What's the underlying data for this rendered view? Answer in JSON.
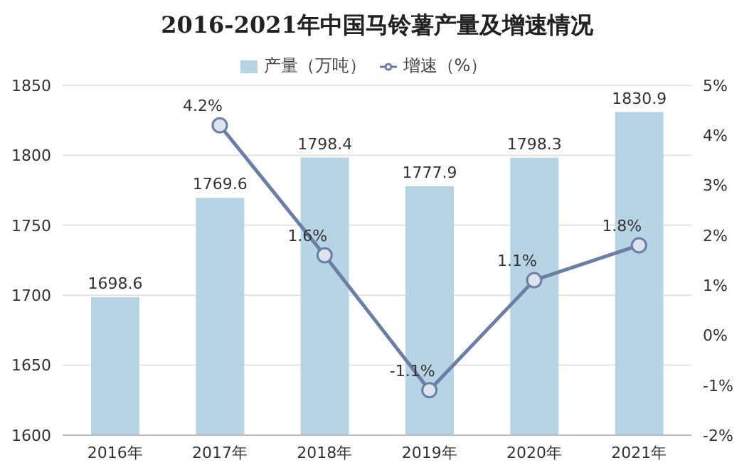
{
  "chart_data": {
    "type": "bar",
    "title": "2016-2021年中国马铃薯产量及增速情况",
    "categories": [
      "2016年",
      "2017年",
      "2018年",
      "2019年",
      "2020年",
      "2021年"
    ],
    "series": [
      {
        "name": "产量（万吨）",
        "color": "#b7d4e4",
        "values": [
          1698.6,
          1769.6,
          1798.4,
          1777.9,
          1798.3,
          1830.9
        ],
        "value_labels": [
          "1698.6",
          "1769.6",
          "1798.4",
          "1777.9",
          "1798.3",
          "1830.9"
        ]
      },
      {
        "name": "增速（%）",
        "type": "line",
        "axis": "y2",
        "color": "#6b7ea6",
        "values": [
          null,
          4.2,
          1.6,
          -1.1,
          1.1,
          1.8
        ],
        "value_labels": [
          null,
          "4.2%",
          "1.6%",
          "-1.1%",
          "1.1%",
          "1.8%"
        ]
      }
    ],
    "ylim": [
      1600,
      1850
    ],
    "yticks": [
      1600,
      1650,
      1700,
      1750,
      1800,
      1850
    ],
    "y2lim": [
      -2,
      5
    ],
    "y2ticks": [
      {
        "value": -2,
        "label": "-2%"
      },
      {
        "value": -1,
        "label": "-1%"
      },
      {
        "value": 0,
        "label": "0%"
      },
      {
        "value": 1,
        "label": "1%"
      },
      {
        "value": 2,
        "label": "2%"
      },
      {
        "value": 3,
        "label": "3%"
      },
      {
        "value": 4,
        "label": "4%"
      },
      {
        "value": 5,
        "label": "5%"
      }
    ],
    "grid": "y",
    "legend": "top",
    "marker": "circle",
    "line_style": "solid"
  }
}
